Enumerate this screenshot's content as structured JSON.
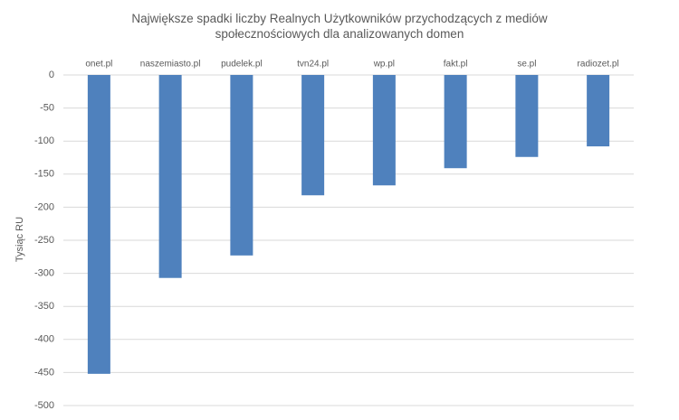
{
  "chart_data": {
    "type": "bar",
    "title": "Największe spadki liczby Realnych Użytkowników przychodzących z mediów społecznościowych dla analizowanych domen",
    "y_label": "Tysiąc RU",
    "categories": [
      "onet.pl",
      "naszemiasto.pl",
      "pudelek.pl",
      "tvn24.pl",
      "wp.pl",
      "fakt.pl",
      "se.pl",
      "radiozet.pl"
    ],
    "values": [
      -452,
      -307,
      -273,
      -182,
      -167,
      -141,
      -124,
      -108
    ],
    "color": "#4f81bd",
    "ylim": [
      -500,
      0
    ],
    "yticks": [
      0,
      -50,
      -100,
      -150,
      -200,
      -250,
      -300,
      -350,
      -400,
      -450,
      -500
    ],
    "grid": true
  }
}
